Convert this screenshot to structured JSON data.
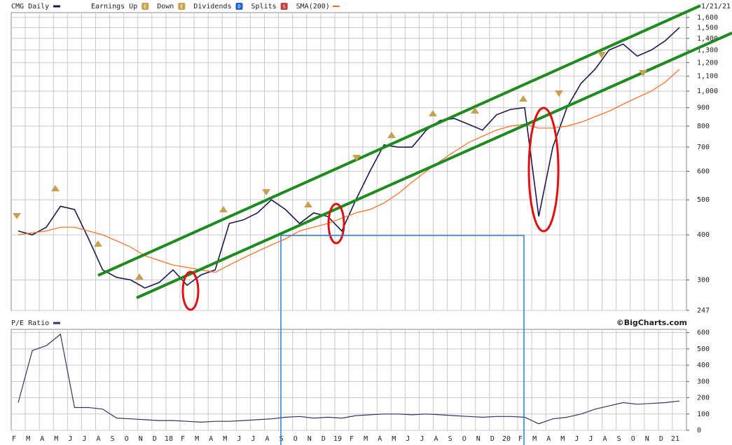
{
  "chart_data": [
    {
      "type": "line",
      "scale": "log",
      "grid": true,
      "date": "1/21/21",
      "event_legend": [
        {
          "label": "Earnings Up",
          "icon": "E",
          "color": "#c8a050"
        },
        {
          "label": "Down",
          "icon": "E",
          "color": "#c8a050"
        },
        {
          "label": "Dividends",
          "icon": "D",
          "color": "#2060d0"
        },
        {
          "label": "Splits",
          "icon": "S",
          "color": "#c04040"
        }
      ],
      "series": [
        {
          "name": "CMG Daily",
          "color": "#1a1a50",
          "values": [
            410,
            400,
            420,
            480,
            470,
            390,
            320,
            305,
            300,
            285,
            295,
            320,
            290,
            310,
            320,
            430,
            440,
            460,
            500,
            470,
            430,
            460,
            450,
            410,
            500,
            600,
            710,
            700,
            700,
            780,
            830,
            840,
            810,
            780,
            860,
            890,
            900,
            450,
            700,
            900,
            1050,
            1150,
            1300,
            1350,
            1250,
            1300,
            1380,
            1500
          ]
        },
        {
          "name": "SMA(200)",
          "color": "#ff6a1a",
          "values": [
            400,
            405,
            410,
            420,
            420,
            410,
            400,
            385,
            370,
            350,
            340,
            330,
            325,
            320,
            315,
            330,
            345,
            360,
            375,
            390,
            410,
            420,
            430,
            445,
            460,
            470,
            490,
            520,
            560,
            600,
            640,
            680,
            720,
            750,
            780,
            800,
            810,
            790,
            790,
            800,
            820,
            850,
            880,
            920,
            960,
            1000,
            1060,
            1150
          ]
        }
      ],
      "ylim": [
        247,
        1650
      ],
      "yticks": [
        247,
        300,
        400,
        500,
        600,
        700,
        800,
        900,
        {
          "value": 1000,
          "label": "1,000"
        },
        {
          "value": 1100,
          "label": "1,100"
        },
        {
          "value": 1200,
          "label": "1,200"
        },
        {
          "value": 1300,
          "label": "1,300"
        },
        {
          "value": 1400,
          "label": "1,400"
        },
        {
          "value": 1500,
          "label": "1,500"
        },
        {
          "value": 1600,
          "label": "1,600"
        }
      ]
    },
    {
      "type": "line",
      "grid": true,
      "source": "©BigCharts.com",
      "categories": [
        "F",
        "M",
        "A",
        "M",
        "J",
        "J",
        "A",
        "S",
        "O",
        "N",
        "D",
        "18",
        "F",
        "M",
        "A",
        "M",
        "J",
        "J",
        "A",
        "S",
        "O",
        "N",
        "D",
        "19",
        "F",
        "M",
        "A",
        "M",
        "J",
        "J",
        "A",
        "S",
        "O",
        "N",
        "D",
        "20",
        "F",
        "M",
        "A",
        "M",
        "J",
        "J",
        "A",
        "S",
        "O",
        "N",
        "D",
        "21"
      ],
      "series": [
        {
          "name": "P/E Ratio",
          "color": "#333366",
          "values": [
            170,
            490,
            520,
            590,
            140,
            140,
            130,
            75,
            70,
            65,
            60,
            60,
            55,
            50,
            55,
            55,
            60,
            65,
            70,
            80,
            85,
            75,
            80,
            75,
            90,
            95,
            100,
            100,
            95,
            100,
            95,
            90,
            85,
            80,
            85,
            85,
            80,
            40,
            70,
            80,
            100,
            130,
            150,
            170,
            160,
            165,
            170,
            180
          ]
        }
      ],
      "ylim": [
        0,
        620
      ],
      "yticks": [
        0,
        100,
        200,
        300,
        400,
        500,
        600
      ]
    }
  ]
}
